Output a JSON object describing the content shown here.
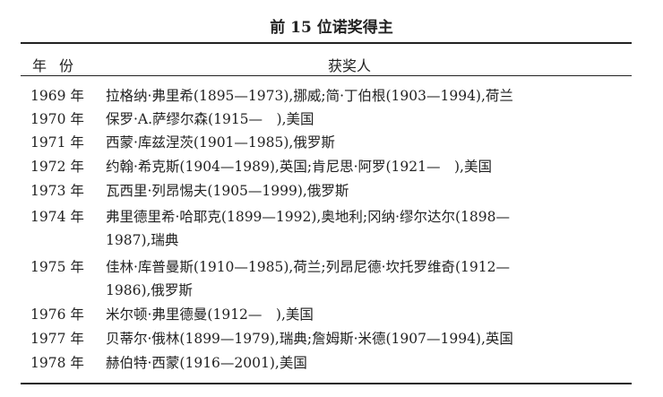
{
  "title": "前 15 位诺奖得主",
  "header": {
    "year": "年份",
    "laureates": "获奖人"
  },
  "rows": [
    {
      "year": "1969 年",
      "lines": [
        "拉格纳·弗里希(1895—1973),挪威;简·丁伯根(1903—1994),荷兰"
      ]
    },
    {
      "year": "1970 年",
      "lines": [
        "保罗·A.萨缪尔森(1915—　),美国"
      ]
    },
    {
      "year": "1971 年",
      "lines": [
        "西蒙·库兹涅茨(1901—1985),俄罗斯"
      ]
    },
    {
      "year": "1972 年",
      "lines": [
        "约翰·希克斯(1904—1989),英国;肯尼思·阿罗(1921—　),美国"
      ]
    },
    {
      "year": "1973 年",
      "lines": [
        "瓦西里·列昂惕夫(1905—1999),俄罗斯"
      ]
    },
    {
      "year": "1974 年",
      "lines": [
        "弗里德里希·哈耶克(1899—1992),奥地利;冈纳·缪尔达尔(1898—",
        "1987),瑞典"
      ]
    },
    {
      "year": "1975 年",
      "lines": [
        "佳林·库普曼斯(1910—1985),荷兰;列昂尼德·坎托罗维奇(1912—",
        "1986),俄罗斯"
      ]
    },
    {
      "year": "1976 年",
      "lines": [
        "米尔顿·弗里德曼(1912—　),美国"
      ]
    },
    {
      "year": "1977 年",
      "lines": [
        "贝蒂尔·俄林(1899—1979),瑞典;詹姆斯·米德(1907—1994),英国"
      ]
    },
    {
      "year": "1978 年",
      "lines": [
        "赫伯特·西蒙(1916—2001),美国"
      ]
    }
  ]
}
